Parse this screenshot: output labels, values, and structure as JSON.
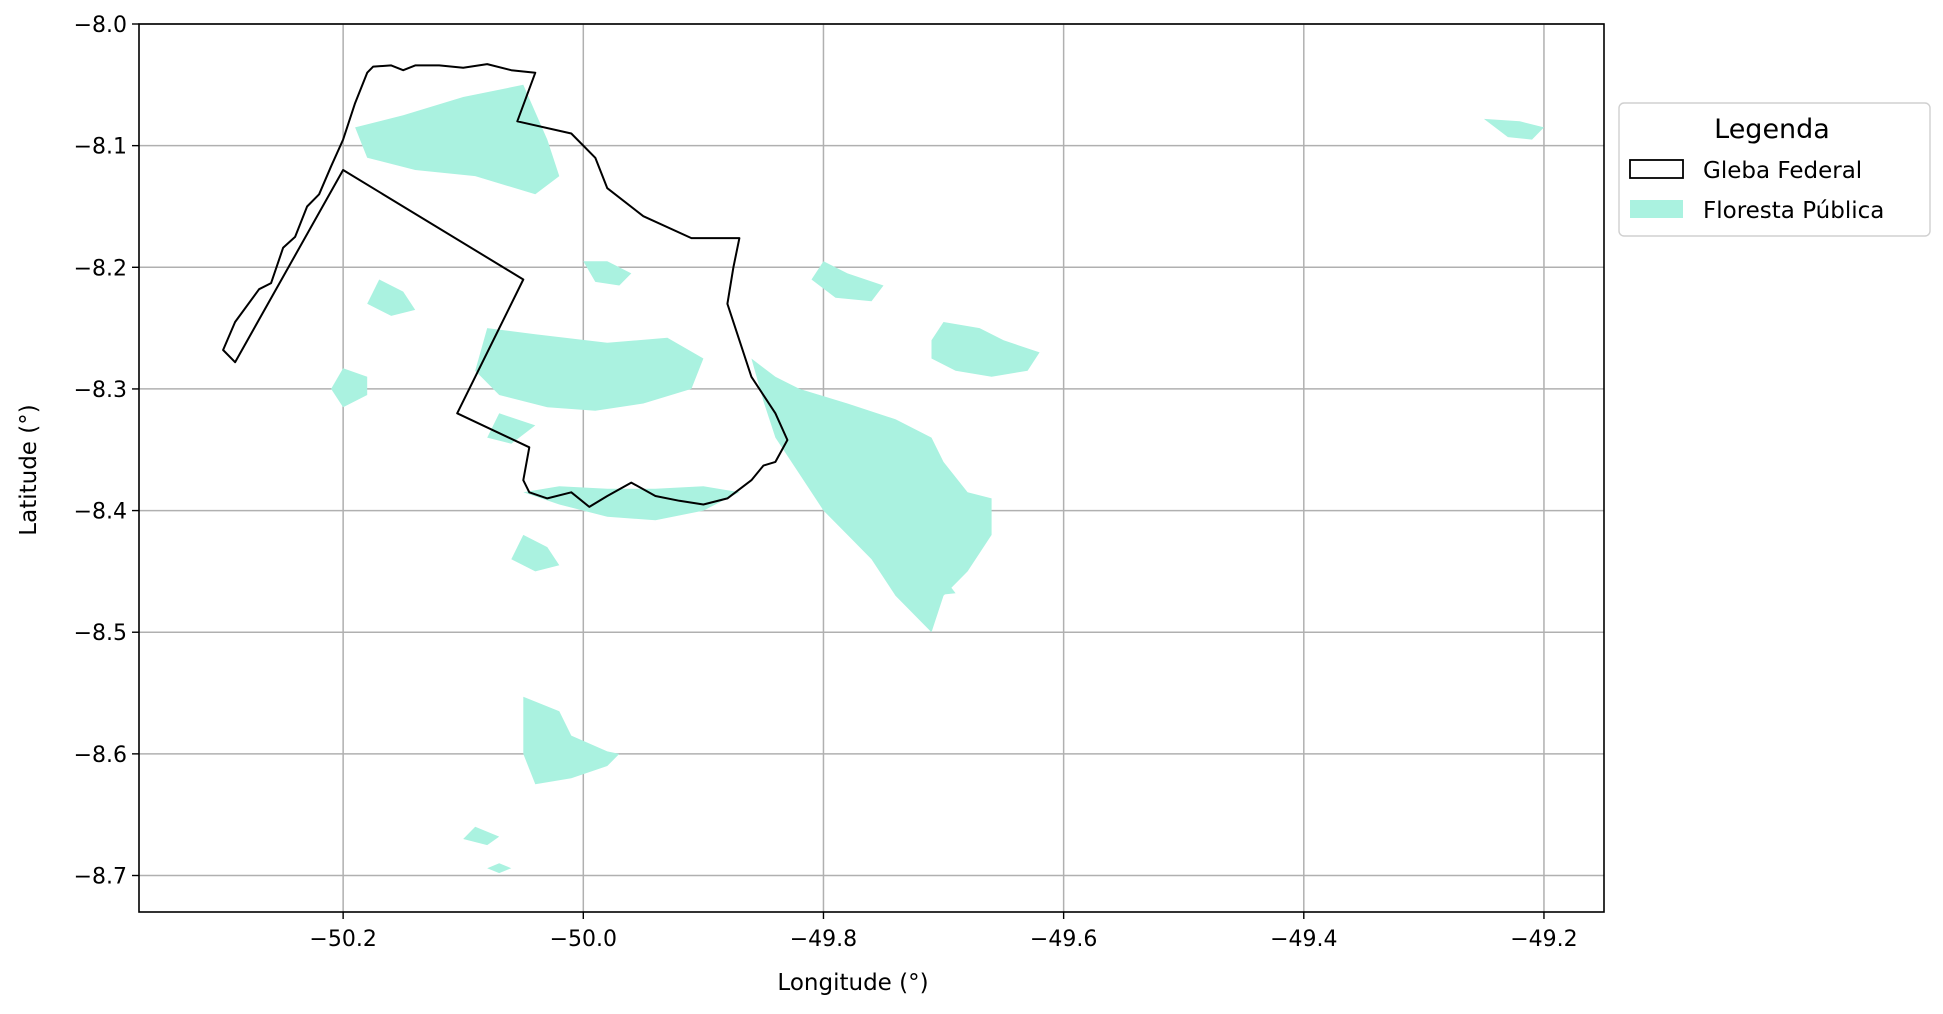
{
  "map": {
    "axes": {
      "xlabel": "Longitude (°)",
      "ylabel": "Latitude (°)",
      "xlim": [
        -50.37,
        -49.15
      ],
      "ylim": [
        -8.73,
        -8.0
      ],
      "xticks": [
        -50.2,
        -50.0,
        -49.8,
        -49.6,
        -49.4,
        -49.2
      ],
      "xtick_labels": [
        "−50.2",
        "−50.0",
        "−49.8",
        "−49.6",
        "−49.4",
        "−49.2"
      ],
      "yticks": [
        -8.0,
        -8.1,
        -8.2,
        -8.3,
        -8.4,
        -8.5,
        -8.6,
        -8.7
      ],
      "ytick_labels": [
        "−8.0",
        "−8.1",
        "−8.2",
        "−8.3",
        "−8.4",
        "−8.5",
        "−8.6",
        "−8.7"
      ],
      "grid": true
    },
    "legend": {
      "title": "Legenda",
      "placement": "outside-upper-right",
      "items": [
        {
          "key": "gleba",
          "label": "Gleba Federal",
          "style": "outline",
          "edge": "#000000"
        },
        {
          "key": "floresta",
          "label": "Floresta Pública",
          "style": "fill",
          "fill": "#aaf2e0"
        }
      ]
    },
    "colors": {
      "forest_fill": "#aaf2e0",
      "boundary": "#000000",
      "grid": "#b0b0b0"
    },
    "gleba_federal": [
      [
        [
          -50.3,
          -8.268
        ],
        [
          -50.29,
          -8.245
        ],
        [
          -50.27,
          -8.218
        ],
        [
          -50.26,
          -8.213
        ],
        [
          -50.25,
          -8.184
        ],
        [
          -50.24,
          -8.175
        ],
        [
          -50.23,
          -8.15
        ],
        [
          -50.22,
          -8.14
        ],
        [
          -50.21,
          -8.117
        ],
        [
          -50.2,
          -8.095
        ],
        [
          -50.19,
          -8.065
        ],
        [
          -50.18,
          -8.04
        ],
        [
          -50.175,
          -8.035
        ],
        [
          -50.16,
          -8.034
        ],
        [
          -50.15,
          -8.038
        ],
        [
          -50.14,
          -8.034
        ],
        [
          -50.12,
          -8.034
        ],
        [
          -50.1,
          -8.036
        ],
        [
          -50.08,
          -8.033
        ],
        [
          -50.06,
          -8.038
        ],
        [
          -50.04,
          -8.04
        ],
        [
          -50.055,
          -8.08
        ],
        [
          -50.01,
          -8.09
        ],
        [
          -49.99,
          -8.11
        ],
        [
          -49.98,
          -8.135
        ],
        [
          -49.95,
          -8.158
        ],
        [
          -49.91,
          -8.176
        ],
        [
          -49.87,
          -8.176
        ],
        [
          -49.875,
          -8.2
        ],
        [
          -49.88,
          -8.23
        ],
        [
          -49.87,
          -8.26
        ],
        [
          -49.86,
          -8.29
        ],
        [
          -49.84,
          -8.32
        ],
        [
          -49.83,
          -8.342
        ],
        [
          -49.84,
          -8.36
        ],
        [
          -49.85,
          -8.363
        ],
        [
          -49.86,
          -8.375
        ],
        [
          -49.88,
          -8.39
        ],
        [
          -49.9,
          -8.395
        ],
        [
          -49.92,
          -8.392
        ],
        [
          -49.94,
          -8.388
        ],
        [
          -49.96,
          -8.377
        ],
        [
          -49.98,
          -8.388
        ],
        [
          -49.995,
          -8.397
        ],
        [
          -50.01,
          -8.385
        ],
        [
          -50.03,
          -8.39
        ],
        [
          -50.045,
          -8.385
        ],
        [
          -50.05,
          -8.375
        ],
        [
          -50.045,
          -8.348
        ],
        [
          -50.105,
          -8.32
        ],
        [
          -50.05,
          -8.21
        ],
        [
          -50.2,
          -8.12
        ],
        [
          -50.29,
          -8.278
        ]
      ]
    ],
    "floresta_publica": [
      [
        [
          -49.86,
          -8.275
        ],
        [
          -49.84,
          -8.29
        ],
        [
          -49.82,
          -8.3
        ],
        [
          -49.78,
          -8.312
        ],
        [
          -49.74,
          -8.325
        ],
        [
          -49.71,
          -8.34
        ],
        [
          -49.7,
          -8.36
        ],
        [
          -49.68,
          -8.385
        ],
        [
          -49.66,
          -8.39
        ],
        [
          -49.66,
          -8.42
        ],
        [
          -49.68,
          -8.45
        ],
        [
          -49.7,
          -8.47
        ],
        [
          -49.71,
          -8.5
        ],
        [
          -49.72,
          -8.49
        ],
        [
          -49.74,
          -8.47
        ],
        [
          -49.76,
          -8.44
        ],
        [
          -49.78,
          -8.42
        ],
        [
          -49.8,
          -8.4
        ],
        [
          -49.82,
          -8.37
        ],
        [
          -49.84,
          -8.34
        ],
        [
          -49.85,
          -8.31
        ]
      ],
      [
        [
          -49.71,
          -8.26
        ],
        [
          -49.7,
          -8.245
        ],
        [
          -49.67,
          -8.25
        ],
        [
          -49.65,
          -8.26
        ],
        [
          -49.62,
          -8.27
        ],
        [
          -49.63,
          -8.285
        ],
        [
          -49.66,
          -8.29
        ],
        [
          -49.69,
          -8.285
        ],
        [
          -49.71,
          -8.275
        ]
      ],
      [
        [
          -50.05,
          -8.05
        ],
        [
          -50.1,
          -8.06
        ],
        [
          -50.15,
          -8.075
        ],
        [
          -50.19,
          -8.085
        ],
        [
          -50.18,
          -8.11
        ],
        [
          -50.14,
          -8.12
        ],
        [
          -50.09,
          -8.125
        ],
        [
          -50.04,
          -8.14
        ],
        [
          -50.02,
          -8.125
        ],
        [
          -50.03,
          -8.095
        ]
      ],
      [
        [
          -50.08,
          -8.25
        ],
        [
          -50.04,
          -8.255
        ],
        [
          -49.98,
          -8.262
        ],
        [
          -49.93,
          -8.258
        ],
        [
          -49.9,
          -8.275
        ],
        [
          -49.91,
          -8.3
        ],
        [
          -49.95,
          -8.312
        ],
        [
          -49.99,
          -8.318
        ],
        [
          -50.03,
          -8.315
        ],
        [
          -50.07,
          -8.305
        ],
        [
          -50.09,
          -8.285
        ]
      ],
      [
        [
          -50.0,
          -8.195
        ],
        [
          -49.98,
          -8.195
        ],
        [
          -49.96,
          -8.205
        ],
        [
          -49.97,
          -8.215
        ],
        [
          -49.99,
          -8.212
        ]
      ],
      [
        [
          -50.05,
          -8.385
        ],
        [
          -50.02,
          -8.395
        ],
        [
          -49.98,
          -8.405
        ],
        [
          -49.94,
          -8.408
        ],
        [
          -49.9,
          -8.4
        ],
        [
          -49.87,
          -8.385
        ],
        [
          -49.9,
          -8.38
        ],
        [
          -49.94,
          -8.382
        ],
        [
          -49.98,
          -8.382
        ],
        [
          -50.02,
          -8.38
        ]
      ],
      [
        [
          -50.05,
          -8.553
        ],
        [
          -50.02,
          -8.565
        ],
        [
          -50.01,
          -8.585
        ],
        [
          -49.98,
          -8.598
        ],
        [
          -49.97,
          -8.6
        ],
        [
          -49.98,
          -8.61
        ],
        [
          -50.01,
          -8.62
        ],
        [
          -50.04,
          -8.625
        ],
        [
          -50.05,
          -8.6
        ],
        [
          -50.05,
          -8.58
        ]
      ],
      [
        [
          -50.2,
          -8.283
        ],
        [
          -50.18,
          -8.29
        ],
        [
          -50.18,
          -8.305
        ],
        [
          -50.2,
          -8.315
        ],
        [
          -50.21,
          -8.3
        ]
      ],
      [
        [
          -49.25,
          -8.078
        ],
        [
          -49.22,
          -8.08
        ],
        [
          -49.2,
          -8.085
        ],
        [
          -49.21,
          -8.095
        ],
        [
          -49.23,
          -8.093
        ]
      ],
      [
        [
          -50.17,
          -8.21
        ],
        [
          -50.15,
          -8.22
        ],
        [
          -50.14,
          -8.235
        ],
        [
          -50.16,
          -8.24
        ],
        [
          -50.18,
          -8.23
        ]
      ],
      [
        [
          -49.8,
          -8.195
        ],
        [
          -49.78,
          -8.205
        ],
        [
          -49.75,
          -8.215
        ],
        [
          -49.76,
          -8.228
        ],
        [
          -49.79,
          -8.225
        ],
        [
          -49.81,
          -8.21
        ]
      ],
      [
        [
          -50.07,
          -8.32
        ],
        [
          -50.04,
          -8.33
        ],
        [
          -50.06,
          -8.345
        ],
        [
          -50.08,
          -8.34
        ]
      ],
      [
        [
          -50.05,
          -8.42
        ],
        [
          -50.03,
          -8.43
        ],
        [
          -50.02,
          -8.445
        ],
        [
          -50.04,
          -8.45
        ],
        [
          -50.06,
          -8.44
        ]
      ],
      [
        [
          -49.72,
          -8.45
        ],
        [
          -49.7,
          -8.455
        ],
        [
          -49.69,
          -8.468
        ],
        [
          -49.71,
          -8.47
        ],
        [
          -49.73,
          -8.463
        ]
      ],
      [
        [
          -50.09,
          -8.66
        ],
        [
          -50.07,
          -8.668
        ],
        [
          -50.08,
          -8.675
        ],
        [
          -50.1,
          -8.67
        ]
      ],
      [
        [
          -50.07,
          -8.69
        ],
        [
          -50.06,
          -8.694
        ],
        [
          -50.07,
          -8.698
        ],
        [
          -50.08,
          -8.694
        ]
      ]
    ]
  }
}
